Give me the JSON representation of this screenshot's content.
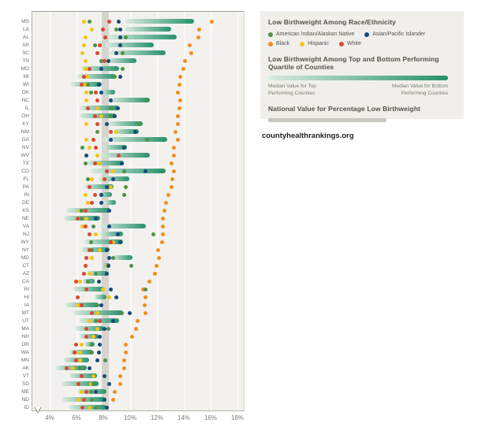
{
  "legend": {
    "race_title": "Low Birthweight Among Race/Ethnicity",
    "quartile_title": "Low Birthweight Among Top and Bottom Performing Quartile of Counties",
    "median_top_caption": "Median Value for Top\nPerforming Counties",
    "median_bottom_caption": "Median Value for Bottom\nPerforming Counties",
    "national_title": "National Value for Percentage Low Birthweight"
  },
  "source": "countyhealthrankings.org",
  "colors": {
    "aian": "#4f9147",
    "asian": "#174a7c",
    "black": "#ee8f21",
    "hispanic": "#f3c515",
    "white": "#dc4731",
    "bar_light": "#d9ebe1",
    "bar_dark": "#27916a",
    "national_band": "#d6d4cf",
    "plot_bg": "#f2f1ed"
  },
  "chart_data": {
    "type": "scatter",
    "title": "Low Birthweight Among Race/Ethnicity",
    "unit": "%",
    "x_min": 4,
    "x_max": 18,
    "x_tick_labels": [
      "4%",
      "6%",
      "8%",
      "10%",
      "12%",
      "14%",
      "16%",
      "18%"
    ],
    "x_ticks": [
      4,
      6,
      8,
      10,
      12,
      14,
      16,
      18
    ],
    "national_value_band": [
      7.85,
      8.35
    ],
    "race_keys": [
      "black",
      "hispanic",
      "aian",
      "white",
      "asian"
    ],
    "race_labels": {
      "aian": "American Indian/Alaskan Native",
      "asian": "Asian/Pacific Islander",
      "black": "Black",
      "hispanic": "Hispanic",
      "white": "White"
    },
    "bar_meaning": "Median value for top performing counties (light end) to median value for bottom performing counties (dark end)",
    "states": [
      {
        "state": "MS",
        "bar": [
          9.6,
          14.7
        ],
        "hispanic": 6.5,
        "aian": 6.9,
        "white": 8.4,
        "asian": 9.1,
        "black": 16.0
      },
      {
        "state": "LA",
        "bar": [
          9.5,
          13.0
        ],
        "hispanic": 7.1,
        "white": 7.9,
        "aian": 8.9,
        "asian": 9.2,
        "black": 15.1
      },
      {
        "state": "AL",
        "bar": [
          8.3,
          13.4
        ],
        "hispanic": 6.6,
        "white": 8.1,
        "asian": 9.2,
        "aian": 9.6,
        "black": 15.0
      },
      {
        "state": "AR",
        "bar": [
          8.1,
          11.7
        ],
        "hispanic": 6.5,
        "aian": 7.3,
        "white": 7.7,
        "asian": 9.2,
        "black": 14.4
      },
      {
        "state": "SC",
        "bar": [
          8.4,
          12.6
        ],
        "hispanic": 6.4,
        "white": 7.5,
        "asian": 8.9,
        "aian": 9.4,
        "black": 14.5
      },
      {
        "state": "TN",
        "bar": [
          8.2,
          10.4
        ],
        "hispanic": 6.6,
        "aian": 7.8,
        "white": 8.0,
        "asian": 8.3,
        "black": 14.0
      },
      {
        "state": "MO",
        "bar": [
          6.3,
          9.1
        ],
        "hispanic": 6.6,
        "white": 6.9,
        "asian": 7.8,
        "aian": 9.4,
        "black": 13.9
      },
      {
        "state": "MI",
        "bar": [
          6.0,
          8.9
        ],
        "white": 6.5,
        "hispanic": 6.8,
        "aian": 8.8,
        "asian": 9.2,
        "black": 13.7
      },
      {
        "state": "WI",
        "bar": [
          5.5,
          7.8
        ],
        "white": 6.3,
        "hispanic": 6.6,
        "aian": 6.8,
        "asian": 7.6,
        "black": 13.6
      },
      {
        "state": "OK",
        "bar": [
          7.8,
          8.8
        ],
        "hispanic": 6.7,
        "aian": 7.0,
        "white": 7.4,
        "asian": 7.8,
        "black": 13.5
      },
      {
        "state": "NC",
        "bar": [
          8.4,
          11.4
        ],
        "hispanic": 6.7,
        "white": 7.5,
        "asian": 8.5,
        "aian": 11.2,
        "black": 13.7
      },
      {
        "state": "IL",
        "bar": [
          6.2,
          9.1
        ],
        "white": 6.8,
        "hispanic": 7.5,
        "aian": 8.5,
        "asian": 9.0,
        "black": 13.6
      },
      {
        "state": "OH",
        "bar": [
          6.2,
          8.9
        ],
        "white": 7.3,
        "hispanic": 7.8,
        "aian": 8.5,
        "asian": 8.8,
        "black": 13.5
      },
      {
        "state": "KY",
        "bar": [
          8.3,
          10.9
        ],
        "hispanic": 6.7,
        "white": 7.5,
        "asian": 8.2,
        "aian": 10.6,
        "black": 13.5
      },
      {
        "state": "NM",
        "bar": [
          8.7,
          10.6
        ],
        "aian": 7.5,
        "white": 8.5,
        "hispanic": 8.9,
        "asian": 10.3,
        "black": 13.3
      },
      {
        "state": "GA",
        "bar": [
          7.9,
          12.7
        ],
        "hispanic": 6.7,
        "white": 7.2,
        "asian": 8.5,
        "aian": 11.2,
        "black": 13.5
      },
      {
        "state": "NV",
        "bar": [
          7.9,
          9.7
        ],
        "aian": 6.4,
        "hispanic": 6.9,
        "white": 7.4,
        "asian": 9.5,
        "black": 13.2
      },
      {
        "state": "WV",
        "bar": [
          7.7,
          11.4
        ],
        "asian": 6.7,
        "hispanic": 7.5,
        "white": 9.1,
        "black": 13.2
      },
      {
        "state": "TX",
        "bar": [
          6.7,
          9.5
        ],
        "aian": 6.6,
        "white": 7.3,
        "hispanic": 7.6,
        "asian": 9.3,
        "black": 13.0
      },
      {
        "state": "CO",
        "bar": [
          7.0,
          12.6
        ],
        "white": 8.2,
        "hispanic": 8.7,
        "aian": 9.5,
        "asian": 11.1,
        "black": 13.2
      },
      {
        "state": "FL",
        "bar": [
          7.6,
          9.9
        ],
        "aian": 6.8,
        "hispanic": 7.1,
        "white": 8.0,
        "asian": 8.7,
        "black": 13.1
      },
      {
        "state": "PA",
        "bar": [
          6.5,
          8.7
        ],
        "white": 6.9,
        "asian": 8.2,
        "hispanic": 8.5,
        "aian": 9.6,
        "black": 13.0
      },
      {
        "state": "IN",
        "bar": [
          7.6,
          8.6
        ],
        "hispanic": 6.6,
        "white": 7.3,
        "asian": 7.8,
        "aian": 9.5,
        "black": 12.8
      },
      {
        "state": "DE",
        "bar": [
          8.0,
          8.9
        ],
        "hispanic": 6.8,
        "white": 7.1,
        "asian": 7.8,
        "black": 12.6
      },
      {
        "state": "KS",
        "bar": [
          5.2,
          8.5
        ],
        "hispanic": 6.2,
        "aian": 6.3,
        "white": 6.6,
        "asian": 8.4,
        "black": 12.5
      },
      {
        "state": "NE",
        "bar": [
          5.0,
          7.7
        ],
        "white": 6.0,
        "aian": 6.3,
        "hispanic": 6.7,
        "asian": 7.4,
        "black": 12.4
      },
      {
        "state": "VA",
        "bar": [
          7.7,
          11.1
        ],
        "hispanic": 6.4,
        "white": 6.6,
        "aian": 7.2,
        "asian": 8.4,
        "black": 12.4
      },
      {
        "state": "NJ",
        "bar": [
          7.7,
          9.4
        ],
        "white": 6.9,
        "hispanic": 7.4,
        "asian": 9.0,
        "aian": 11.7,
        "black": 12.4
      },
      {
        "state": "WY",
        "bar": [
          6.5,
          9.4
        ],
        "aian": 7.0,
        "white": 8.5,
        "hispanic": 8.7,
        "asian": 9.2,
        "black": 12.3
      },
      {
        "state": "NY",
        "bar": [
          6.3,
          8.4
        ],
        "white": 6.9,
        "aian": 7.1,
        "hispanic": 7.7,
        "asian": 8.2,
        "black": 12.0
      },
      {
        "state": "MD",
        "bar": [
          8.6,
          10.1
        ],
        "white": 6.7,
        "hispanic": 7.1,
        "asian": 8.4,
        "aian": 8.7,
        "black": 12.1
      },
      {
        "state": "CT",
        "bar": [
          7.8,
          8.5
        ],
        "white": 6.6,
        "hispanic": 8.2,
        "asian": 8.3,
        "aian": 10.0,
        "black": 11.9
      },
      {
        "state": "AZ",
        "bar": [
          6.7,
          8.3
        ],
        "white": 6.5,
        "hispanic": 6.9,
        "aian": 7.4,
        "asian": 8.2,
        "black": 11.8
      },
      {
        "state": "CA",
        "bar": [
          6.4,
          7.3
        ],
        "white": 5.9,
        "hispanic": 6.2,
        "aian": 6.8,
        "asian": 7.6,
        "black": 11.4
      },
      {
        "state": "RI",
        "bar": [
          5.7,
          8.0
        ],
        "white": 6.7,
        "hispanic": 7.9,
        "asian": 8.5,
        "black": 10.9,
        "aian": 11.1
      },
      {
        "state": "HI",
        "bar": [
          7.3,
          8.2
        ],
        "white": 6.0,
        "hispanic": 8.4,
        "asian": 8.9,
        "black": 11.1
      },
      {
        "state": "IA",
        "bar": [
          5.1,
          7.6
        ],
        "hispanic": 6.0,
        "white": 6.3,
        "aian": 7.5,
        "asian": 7.8,
        "black": 11.0
      },
      {
        "state": "MT",
        "bar": [
          5.7,
          9.4
        ],
        "white": 7.1,
        "hispanic": 7.5,
        "aian": 9.3,
        "asian": 9.9,
        "black": 11.1
      },
      {
        "state": "UT",
        "bar": [
          6.2,
          9.1
        ],
        "hispanic": 6.9,
        "aian": 7.4,
        "white": 7.7,
        "asian": 8.7,
        "black": 10.5
      },
      {
        "state": "MA",
        "bar": [
          5.9,
          8.0
        ],
        "white": 6.7,
        "hispanic": 7.5,
        "asian": 8.0,
        "aian": 8.3,
        "black": 10.4
      },
      {
        "state": "NH",
        "bar": [
          6.2,
          7.6
        ],
        "white": 6.7,
        "hispanic": 7.2,
        "asian": 7.7,
        "black": 10.1
      },
      {
        "state": "OR",
        "bar": [
          6.5,
          7.3
        ],
        "white": 5.9,
        "hispanic": 6.3,
        "aian": 7.1,
        "asian": 7.7,
        "black": 9.6
      },
      {
        "state": "WA",
        "bar": [
          5.4,
          7.2
        ],
        "white": 5.8,
        "hispanic": 6.2,
        "aian": 7.1,
        "asian": 7.6,
        "black": 9.6
      },
      {
        "state": "MN",
        "bar": [
          5.0,
          6.9
        ],
        "white": 5.9,
        "hispanic": 6.2,
        "asian": 7.5,
        "aian": 8.1,
        "black": 9.5
      },
      {
        "state": "AK",
        "bar": [
          4.4,
          6.7
        ],
        "white": 5.2,
        "hispanic": 5.7,
        "aian": 6.2,
        "asian": 6.9,
        "black": 9.5
      },
      {
        "state": "VT",
        "bar": [
          5.4,
          7.5
        ],
        "white": 6.3,
        "hispanic": 7.2,
        "asian": 8.0,
        "black": 9.2
      },
      {
        "state": "SD",
        "bar": [
          4.8,
          7.6
        ],
        "white": 6.1,
        "hispanic": 7.0,
        "aian": 7.2,
        "asian": 8.4,
        "black": 9.2
      },
      {
        "state": "ME",
        "bar": [
          6.0,
          8.2
        ],
        "hispanic": 6.3,
        "white": 6.7,
        "aian": 7.0,
        "asian": 7.4,
        "black": 8.8
      },
      {
        "state": "ND",
        "bar": [
          4.9,
          8.1
        ],
        "hispanic": 6.1,
        "white": 6.5,
        "aian": 7.1,
        "asian": 8.0,
        "black": 8.7
      },
      {
        "state": "ID",
        "bar": [
          5.4,
          8.2
        ],
        "white": 6.4,
        "hispanic": 6.9,
        "aian": 7.4,
        "asian": 8.2
      }
    ]
  }
}
